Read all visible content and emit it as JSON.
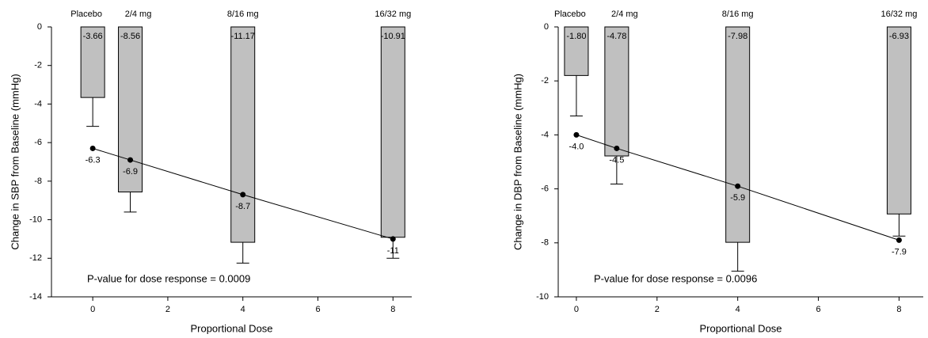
{
  "chart_data": [
    {
      "type": "bar",
      "y_label": "Change in SBP from Baseline (mmHg)",
      "x_label": "Proportional Dose",
      "x": [
        0,
        1,
        4,
        8
      ],
      "bar_labels": [
        "Placebo",
        "2/4 mg",
        "8/16 mg",
        "16/32 mg"
      ],
      "series": [
        {
          "type": "bar",
          "color": "#c0c0c0",
          "values": [
            -3.66,
            -8.56,
            -11.17,
            -10.91
          ],
          "errors": [
            1.5,
            1.04,
            1.08,
            1.09
          ]
        },
        {
          "type": "line",
          "color": "#000000",
          "values": [
            -6.3,
            -6.9,
            -8.7,
            -11
          ]
        }
      ],
      "annotation": "P-value for dose response = 0.0009",
      "xlim": [
        -1.1,
        8.5
      ],
      "xticks": [
        0,
        2,
        4,
        6,
        8
      ],
      "ylim": [
        -14,
        0
      ],
      "yticks": [
        -14,
        -12,
        -10,
        -8,
        -6,
        -4,
        -2,
        0
      ]
    },
    {
      "type": "bar",
      "y_label": "Change in DBP from Baseline (mmHg)",
      "x_label": "Proportional Dose",
      "x": [
        0,
        1,
        4,
        8
      ],
      "bar_labels": [
        "Placebo",
        "2/4 mg",
        "8/16 mg",
        "16/32 mg"
      ],
      "series": [
        {
          "type": "bar",
          "color": "#c0c0c0",
          "values": [
            -1.8,
            -4.78,
            -7.98,
            -6.93
          ],
          "value_labels": [
            "-1.80",
            "-4.78",
            "-7.98",
            "-6.93"
          ],
          "errors": [
            1.5,
            1.04,
            1.07,
            0.82
          ]
        },
        {
          "type": "line",
          "color": "#000000",
          "values": [
            -4.0,
            -4.5,
            -5.9,
            -7.9
          ],
          "value_labels": [
            "-4.0",
            "-4.5",
            "-5.9",
            "-7.9"
          ]
        }
      ],
      "annotation": "P-value for dose response = 0.0096",
      "xlim": [
        -0.45,
        8.6
      ],
      "xticks": [
        0,
        2,
        4,
        6,
        8
      ],
      "ylim": [
        -10,
        0
      ],
      "yticks": [
        -10,
        -8,
        -6,
        -4,
        -2,
        0
      ]
    }
  ]
}
